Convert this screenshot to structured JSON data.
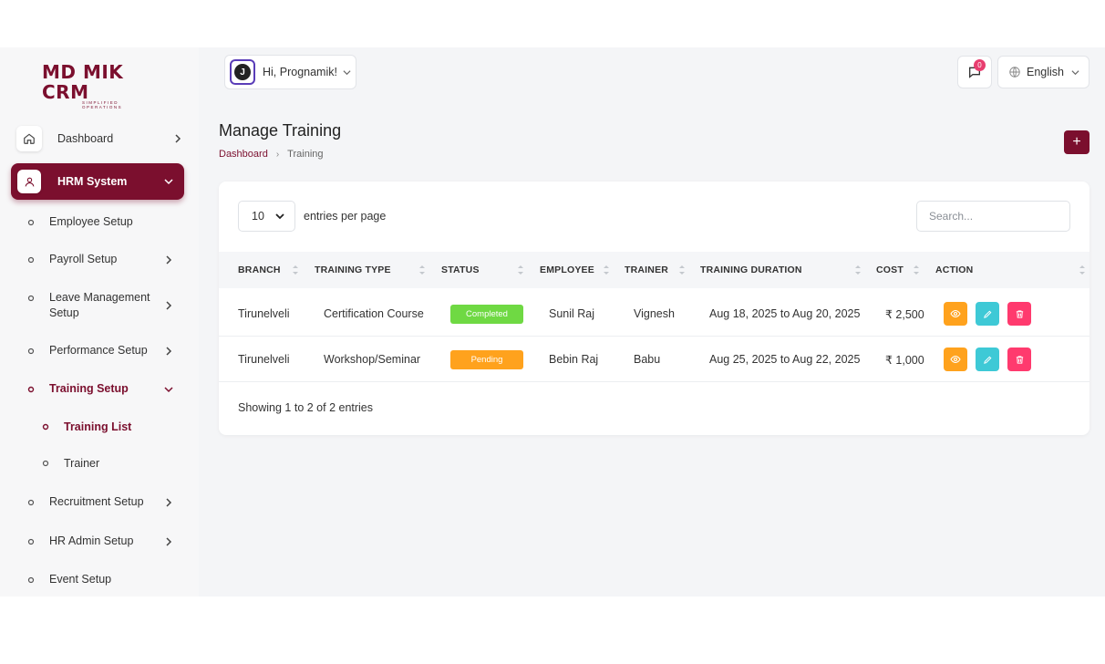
{
  "brand": {
    "logo_text": "MD MIK CRM",
    "logo_sub": "SIMPLIFIED OPERATIONS",
    "color": "#7b0f2e"
  },
  "header": {
    "greeting": "Hi, Prognamik!",
    "avatar_letter": "J",
    "notification_count": "0",
    "language": "English"
  },
  "sidebar": {
    "dashboard": "Dashboard",
    "hrm": "HRM System",
    "items": [
      "Employee Setup",
      "Payroll Setup",
      "Leave Management Setup",
      "Performance Setup",
      "Training Setup",
      "Recruitment Setup",
      "HR Admin Setup",
      "Event Setup"
    ],
    "training_sub": [
      "Training List",
      "Trainer"
    ]
  },
  "page": {
    "title": "Manage Training",
    "breadcrumb_home": "Dashboard",
    "breadcrumb_current": "Training",
    "add_label": "+"
  },
  "table_controls": {
    "per_page_value": "10",
    "per_page_label": "entries per page",
    "search_placeholder": "Search..."
  },
  "table": {
    "headers": [
      "BRANCH",
      "TRAINING TYPE",
      "STATUS",
      "EMPLOYEE",
      "TRAINER",
      "TRAINING DURATION",
      "COST",
      "ACTION"
    ],
    "rows": [
      {
        "branch": "Tirunelveli",
        "type": "Certification Course",
        "status": "Completed",
        "status_color": "#6fd943",
        "employee": "Sunil Raj",
        "trainer": "Vignesh",
        "duration": "Aug 18, 2025 to Aug 20, 2025",
        "cost": "₹ 2,500"
      },
      {
        "branch": "Tirunelveli",
        "type": "Workshop/Seminar",
        "status": "Pending",
        "status_color": "#ffa21d",
        "employee": "Bebin Raj",
        "trainer": "Babu",
        "duration": "Aug 25, 2025 to Aug 22, 2025",
        "cost": "₹ 1,000"
      }
    ],
    "footer": "Showing 1 to 2 of 2 entries"
  }
}
